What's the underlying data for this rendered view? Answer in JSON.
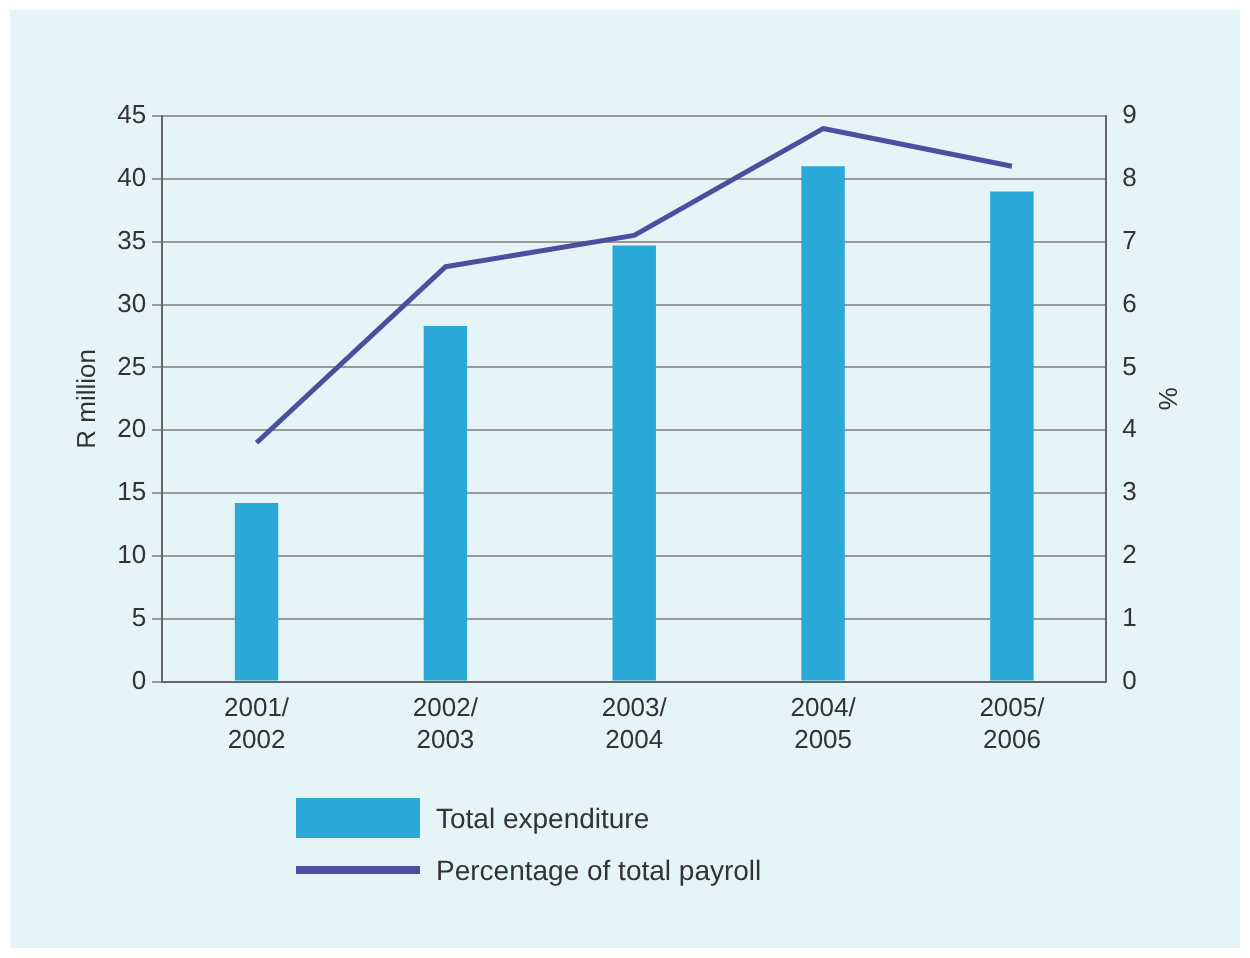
{
  "chart_data": {
    "type": "bar",
    "categories": [
      "2001/2002",
      "2002/2003",
      "2003/2004",
      "2004/2005",
      "2005/2006"
    ],
    "series": [
      {
        "name": "Total expenditure",
        "color": "#2aa9d8",
        "values": [
          14.2,
          28.3,
          34.7,
          41,
          39
        ]
      },
      {
        "name": "Percentage of total payroll",
        "type": "line",
        "axis": "y2",
        "color": "#4a4fa0",
        "values": [
          3.8,
          6.6,
          7.1,
          8.8,
          8.2
        ]
      }
    ],
    "ylabel": "R million",
    "y2label": "%",
    "ylim": [
      0,
      45
    ],
    "yticks": [
      0,
      5,
      10,
      15,
      20,
      25,
      30,
      35,
      40,
      45
    ],
    "y2lim": [
      0,
      9
    ],
    "y2ticks": [
      0,
      1,
      2,
      3,
      4,
      5,
      6,
      7,
      8,
      9
    ],
    "grid": "y",
    "legend": "bottom",
    "marker": "none"
  }
}
